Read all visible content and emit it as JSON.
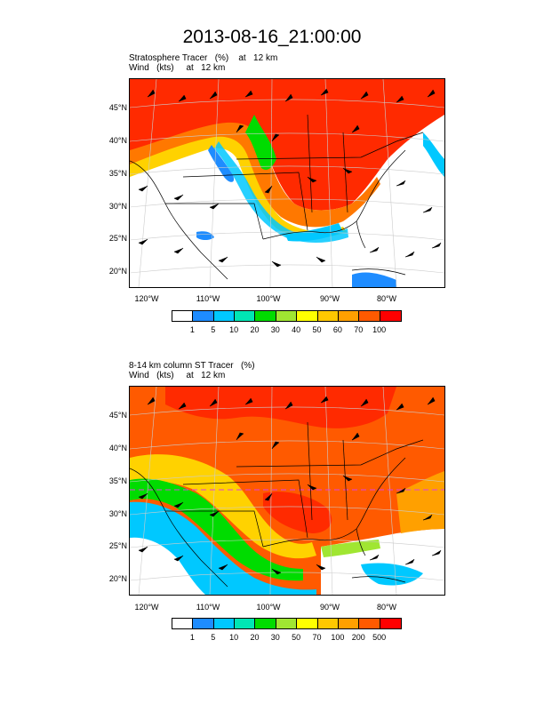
{
  "title": "2013-08-16_21:00:00",
  "panels": [
    {
      "field_label": "Stratosphere Tracer   (%)    at   12 km",
      "wind_label": "Wind   (kts)     at   12 km",
      "lat_labels": [
        "45°N",
        "40°N",
        "35°N",
        "30°N",
        "25°N",
        "20°N"
      ],
      "lon_labels": [
        "120°W",
        "110°W",
        "100°W",
        "90°W",
        "80°W"
      ],
      "colorbar": {
        "colors": [
          "#ffffff",
          "#1e8cff",
          "#00c8ff",
          "#00e6b4",
          "#00dc00",
          "#a0e632",
          "#ffff00",
          "#ffc800",
          "#ffa000",
          "#ff5a00",
          "#ff0000"
        ],
        "labels": [
          "1",
          "5",
          "10",
          "20",
          "30",
          "40",
          "50",
          "60",
          "70",
          "100"
        ]
      }
    },
    {
      "field_label": "8-14 km column ST Tracer   (%)",
      "wind_label": "Wind   (kts)     at   12 km",
      "lat_labels": [
        "45°N",
        "40°N",
        "35°N",
        "30°N",
        "25°N",
        "20°N"
      ],
      "lon_labels": [
        "120°W",
        "110°W",
        "100°W",
        "90°W",
        "80°W"
      ],
      "colorbar": {
        "colors": [
          "#ffffff",
          "#1e8cff",
          "#00c8ff",
          "#00e6b4",
          "#00dc00",
          "#a0e632",
          "#ffff00",
          "#ffc800",
          "#ffa000",
          "#ff5a00",
          "#ff0000"
        ],
        "labels": [
          "1",
          "5",
          "10",
          "20",
          "30",
          "50",
          "70",
          "100",
          "200",
          "500"
        ]
      }
    }
  ]
}
